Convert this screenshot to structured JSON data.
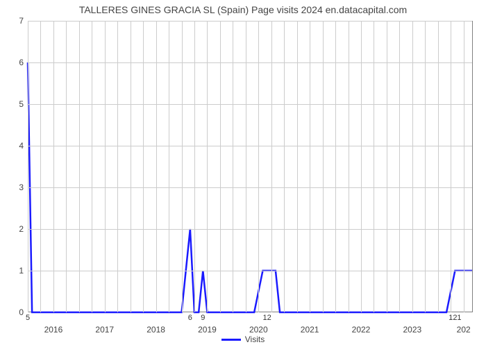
{
  "chart": {
    "type": "line",
    "title": "TALLERES GINES GRACIA SL (Spain) Page visits 2024 en.datacapital.com",
    "title_fontsize": 14,
    "title_color": "#444444",
    "background_color": "#ffffff",
    "grid_color": "#cccccc",
    "axis_color": "#808080",
    "tick_fontsize": 12,
    "tick_color": "#444444",
    "line_color": "#1a1aff",
    "line_width": 2.5,
    "ylim": [
      0,
      7
    ],
    "yticks": [
      0,
      1,
      2,
      3,
      4,
      5,
      6,
      7
    ],
    "xlim": [
      0,
      104
    ],
    "x_major_ticks": [
      {
        "pos": 6,
        "label": "2016"
      },
      {
        "pos": 18,
        "label": "2017"
      },
      {
        "pos": 30,
        "label": "2018"
      },
      {
        "pos": 42,
        "label": "2019"
      },
      {
        "pos": 54,
        "label": "2020"
      },
      {
        "pos": 66,
        "label": "2021"
      },
      {
        "pos": 78,
        "label": "2022"
      },
      {
        "pos": 90,
        "label": "2023"
      },
      {
        "pos": 102,
        "label": "202"
      }
    ],
    "x_grid_lines": [
      0,
      3,
      6,
      9,
      12,
      15,
      18,
      21,
      24,
      27,
      30,
      33,
      36,
      39,
      42,
      45,
      48,
      51,
      54,
      57,
      60,
      63,
      66,
      69,
      72,
      75,
      78,
      81,
      84,
      87,
      90,
      93,
      96,
      99,
      102
    ],
    "y_grid_lines": [
      1,
      2,
      3,
      4,
      5,
      6,
      7
    ],
    "data_value_labels": [
      {
        "x": 0,
        "text": "5"
      },
      {
        "x": 38,
        "text": "6"
      },
      {
        "x": 41,
        "text": "9"
      },
      {
        "x": 56,
        "text": "12"
      },
      {
        "x": 100,
        "text": "121"
      }
    ],
    "series": {
      "name": "Visits",
      "points": [
        {
          "x": 0,
          "y": 6.0
        },
        {
          "x": 1,
          "y": 0.0
        },
        {
          "x": 36,
          "y": 0.0
        },
        {
          "x": 38,
          "y": 2.0
        },
        {
          "x": 39,
          "y": 0.0
        },
        {
          "x": 40,
          "y": 0.0
        },
        {
          "x": 41,
          "y": 1.0
        },
        {
          "x": 42,
          "y": 0.0
        },
        {
          "x": 53,
          "y": 0.0
        },
        {
          "x": 55,
          "y": 1.0
        },
        {
          "x": 58,
          "y": 1.0
        },
        {
          "x": 59,
          "y": 0.0
        },
        {
          "x": 98,
          "y": 0.0
        },
        {
          "x": 100,
          "y": 1.0
        },
        {
          "x": 104,
          "y": 1.0
        }
      ]
    },
    "legend": {
      "label": "Visits",
      "position": "bottom-center",
      "swatch_color": "#1a1aff"
    }
  }
}
